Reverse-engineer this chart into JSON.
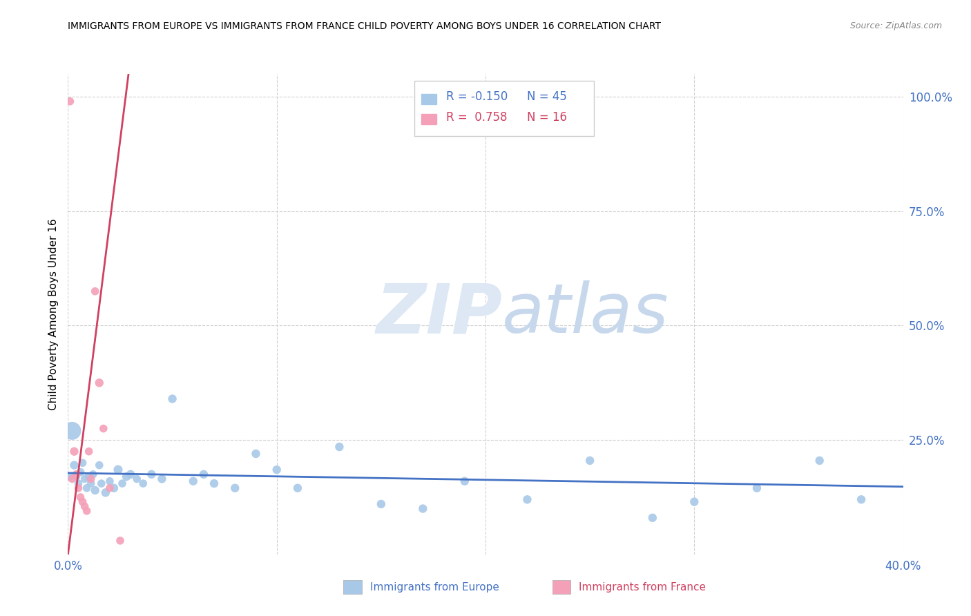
{
  "title": "IMMIGRANTS FROM EUROPE VS IMMIGRANTS FROM FRANCE CHILD POVERTY AMONG BOYS UNDER 16 CORRELATION CHART",
  "source": "Source: ZipAtlas.com",
  "ylabel": "Child Poverty Among Boys Under 16",
  "legend_europe": {
    "R": "-0.150",
    "N": "45",
    "label": "Immigrants from Europe"
  },
  "legend_france": {
    "R": "0.758",
    "N": "16",
    "label": "Immigrants from France"
  },
  "color_europe": "#a8c8e8",
  "color_france": "#f4a0b8",
  "color_europe_line": "#4472c4",
  "color_france_line": "#d04060",
  "color_europe_dark": "#4472c4",
  "color_france_dark": "#d04060",
  "watermark_zip": "ZIP",
  "watermark_atlas": "atlas",
  "xlim": [
    0.0,
    0.4
  ],
  "ylim": [
    0.0,
    1.05
  ],
  "yticks": [
    0.25,
    0.5,
    0.75,
    1.0
  ],
  "ytick_labels": [
    "25.0%",
    "50.0%",
    "75.0%",
    "100.0%"
  ],
  "europe_x": [
    0.002,
    0.003,
    0.004,
    0.005,
    0.006,
    0.007,
    0.008,
    0.009,
    0.01,
    0.011,
    0.012,
    0.013,
    0.015,
    0.016,
    0.018,
    0.02,
    0.022,
    0.024,
    0.026,
    0.028,
    0.03,
    0.033,
    0.036,
    0.04,
    0.045,
    0.05,
    0.06,
    0.065,
    0.07,
    0.08,
    0.09,
    0.1,
    0.11,
    0.13,
    0.15,
    0.17,
    0.19,
    0.22,
    0.25,
    0.28,
    0.3,
    0.33,
    0.36,
    0.38,
    0.001
  ],
  "europe_y": [
    0.27,
    0.195,
    0.17,
    0.155,
    0.18,
    0.2,
    0.165,
    0.145,
    0.17,
    0.155,
    0.175,
    0.14,
    0.195,
    0.155,
    0.135,
    0.16,
    0.145,
    0.185,
    0.155,
    0.17,
    0.175,
    0.165,
    0.155,
    0.175,
    0.165,
    0.34,
    0.16,
    0.175,
    0.155,
    0.145,
    0.22,
    0.185,
    0.145,
    0.235,
    0.11,
    0.1,
    0.16,
    0.12,
    0.205,
    0.08,
    0.115,
    0.145,
    0.205,
    0.12,
    0.17
  ],
  "europe_size": [
    350,
    80,
    70,
    70,
    70,
    70,
    70,
    70,
    80,
    70,
    70,
    80,
    70,
    70,
    80,
    70,
    80,
    90,
    70,
    80,
    80,
    70,
    70,
    80,
    80,
    80,
    80,
    80,
    80,
    80,
    80,
    80,
    80,
    80,
    80,
    80,
    80,
    80,
    80,
    80,
    80,
    80,
    80,
    80,
    80
  ],
  "france_x": [
    0.001,
    0.002,
    0.003,
    0.004,
    0.005,
    0.006,
    0.007,
    0.008,
    0.009,
    0.01,
    0.011,
    0.013,
    0.015,
    0.017,
    0.02,
    0.025
  ],
  "france_y": [
    0.99,
    0.165,
    0.225,
    0.175,
    0.145,
    0.125,
    0.115,
    0.105,
    0.095,
    0.225,
    0.165,
    0.575,
    0.375,
    0.275,
    0.145,
    0.03
  ],
  "france_size": [
    70,
    70,
    80,
    70,
    70,
    70,
    70,
    70,
    70,
    70,
    70,
    70,
    80,
    70,
    70,
    70
  ],
  "europe_trend_x": [
    0.0,
    0.4
  ],
  "europe_trend_y": [
    0.178,
    0.148
  ],
  "france_trend_x": [
    0.0,
    0.029
  ],
  "france_trend_y": [
    0.0,
    1.05
  ]
}
